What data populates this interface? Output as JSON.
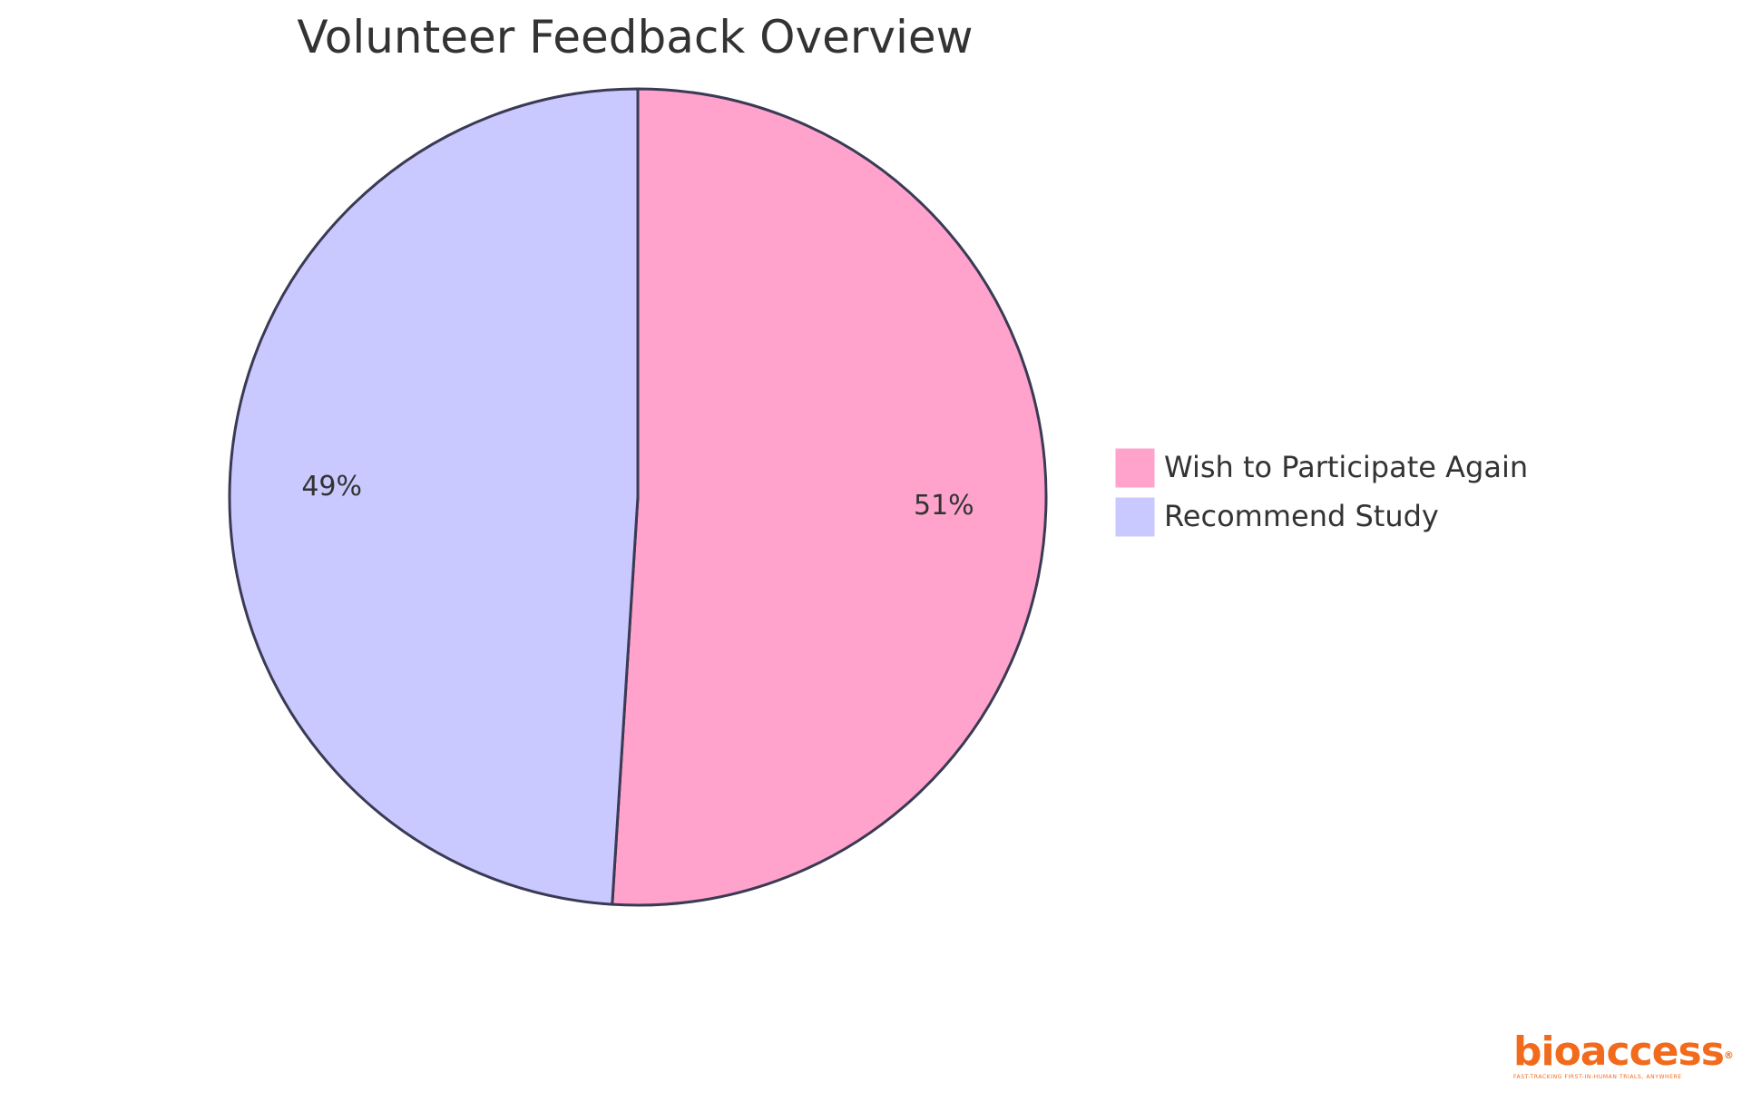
{
  "chart_data": {
    "type": "pie",
    "title": "Volunteer Feedback Overview",
    "slices": [
      {
        "label": "Wish to Participate Again",
        "value": 51,
        "display": "51%",
        "color": "#FFA3CC"
      },
      {
        "label": "Recommend Study",
        "value": 49,
        "display": "49%",
        "color": "#C9C9FF"
      }
    ],
    "legend_position": "right",
    "stroke_color": "#3A3A55"
  },
  "logo": {
    "word": "bioaccess",
    "registered": "®",
    "tagline": "FAST-TRACKING FIRST-IN-HUMAN TRIALS, ANYWHERE",
    "color": "#F26A1B"
  }
}
